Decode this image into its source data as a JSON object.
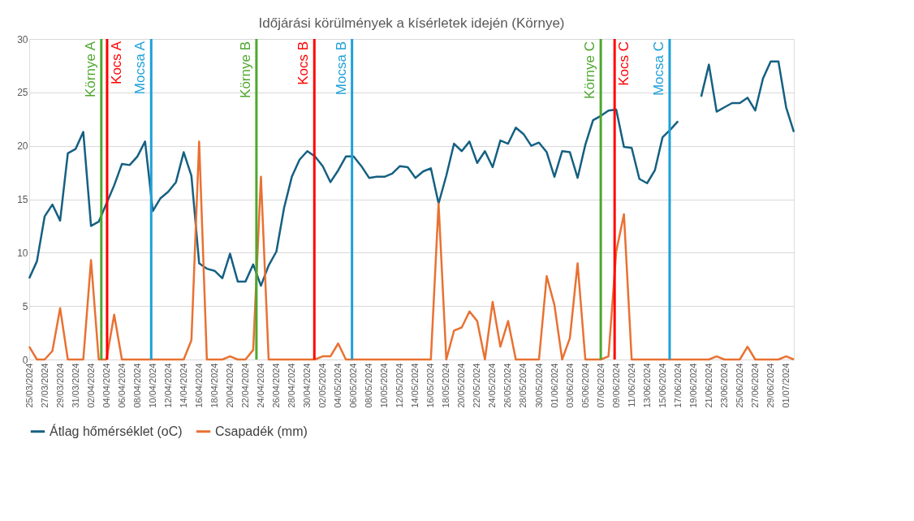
{
  "chart_data": {
    "type": "line",
    "title": "Időjárási körülmények a kísérletek idején (Környe)",
    "x": [
      "2024-03-25",
      "2024-03-26",
      "2024-03-27",
      "2024-03-28",
      "2024-03-29",
      "2024-03-30",
      "2024-03-31",
      "2024-04-01",
      "2024-04-02",
      "2024-04-03",
      "2024-04-04",
      "2024-04-05",
      "2024-04-06",
      "2024-04-07",
      "2024-04-08",
      "2024-04-09",
      "2024-04-10",
      "2024-04-11",
      "2024-04-12",
      "2024-04-13",
      "2024-04-14",
      "2024-04-15",
      "2024-04-16",
      "2024-04-17",
      "2024-04-18",
      "2024-04-19",
      "2024-04-20",
      "2024-04-21",
      "2024-04-22",
      "2024-04-23",
      "2024-04-24",
      "2024-04-25",
      "2024-04-26",
      "2024-04-27",
      "2024-04-28",
      "2024-04-29",
      "2024-04-30",
      "2024-05-01",
      "2024-05-02",
      "2024-05-03",
      "2024-05-04",
      "2024-05-05",
      "2024-05-06",
      "2024-05-07",
      "2024-05-08",
      "2024-05-09",
      "2024-05-10",
      "2024-05-11",
      "2024-05-12",
      "2024-05-13",
      "2024-05-14",
      "2024-05-15",
      "2024-05-16",
      "2024-05-17",
      "2024-05-18",
      "2024-05-19",
      "2024-05-20",
      "2024-05-21",
      "2024-05-22",
      "2024-05-23",
      "2024-05-24",
      "2024-05-25",
      "2024-05-26",
      "2024-05-27",
      "2024-05-28",
      "2024-05-29",
      "2024-05-30",
      "2024-05-31",
      "2024-06-01",
      "2024-06-02",
      "2024-06-03",
      "2024-06-04",
      "2024-06-05",
      "2024-06-06",
      "2024-06-07",
      "2024-06-08",
      "2024-06-09",
      "2024-06-10",
      "2024-06-11",
      "2024-06-12",
      "2024-06-13",
      "2024-06-14",
      "2024-06-15",
      "2024-06-16",
      "2024-06-17",
      "2024-06-18",
      "2024-06-19",
      "2024-06-20",
      "2024-06-21",
      "2024-06-22",
      "2024-06-23",
      "2024-06-24",
      "2024-06-25",
      "2024-06-26",
      "2024-06-27",
      "2024-06-28",
      "2024-06-29",
      "2024-06-30",
      "2024-07-01",
      "2024-07-02"
    ],
    "series": [
      {
        "name": "Átlag hőmérséklet (oC)",
        "color": "#156082",
        "values": [
          7.6,
          9.2,
          13.4,
          14.5,
          13.0,
          19.3,
          19.7,
          21.3,
          12.5,
          12.9,
          14.6,
          16.3,
          18.3,
          18.2,
          19.0,
          20.4,
          13.9,
          15.1,
          15.7,
          16.6,
          19.4,
          17.2,
          9.0,
          8.5,
          8.3,
          7.6,
          9.9,
          7.3,
          7.3,
          8.9,
          6.9,
          8.8,
          10.1,
          14.2,
          17.1,
          18.7,
          19.5,
          19.0,
          18.1,
          16.6,
          17.7,
          19.0,
          19.0,
          18.1,
          17.0,
          17.1,
          17.1,
          17.4,
          18.1,
          18.0,
          17.0,
          17.6,
          17.9,
          14.6,
          17.2,
          20.2,
          19.5,
          20.4,
          18.4,
          19.5,
          18.0,
          20.5,
          20.2,
          21.7,
          21.1,
          20.0,
          20.3,
          19.4,
          17.1,
          19.5,
          19.4,
          17.0,
          20.1,
          22.4,
          22.8,
          23.3,
          23.4,
          19.9,
          19.8,
          16.9,
          16.5,
          17.7,
          20.8,
          21.5,
          22.3,
          null,
          null,
          24.6,
          27.6,
          23.2,
          23.6,
          24.0,
          24.0,
          24.5,
          23.3,
          26.3,
          27.9,
          27.9,
          23.6,
          21.3
        ]
      },
      {
        "name": "Csapadék (mm)",
        "color": "#e97132",
        "values": [
          1.2,
          0,
          0,
          0.8,
          4.8,
          0,
          0,
          0,
          9.3,
          0,
          0,
          4.2,
          0,
          0,
          0,
          0,
          0,
          0,
          0,
          0,
          0,
          1.8,
          20.4,
          0,
          0,
          0,
          0.3,
          0,
          0,
          0.9,
          17.1,
          0,
          0,
          0,
          0,
          0,
          0,
          0,
          0.3,
          0.3,
          1.5,
          0,
          0,
          0,
          0,
          0,
          0,
          0,
          0,
          0,
          0,
          0,
          0,
          14.6,
          0,
          2.7,
          3.0,
          4.5,
          3.6,
          0,
          5.4,
          1.2,
          3.6,
          0,
          0,
          0,
          0,
          7.8,
          5.1,
          0,
          2.0,
          9.0,
          0,
          0,
          0,
          0.3,
          10.1,
          13.6,
          0,
          0,
          0,
          0,
          0,
          0,
          0,
          0,
          0,
          0,
          0,
          0.3,
          0,
          0,
          0,
          1.2,
          0,
          0,
          0,
          0,
          0.3,
          0
        ]
      }
    ],
    "xlim": [
      "2024-03-25",
      "2024-07-02"
    ],
    "xticks": [
      {
        "value": "2024-03-25",
        "label": "25/03/2024"
      },
      {
        "value": "2024-03-27",
        "label": "27/03/2024"
      },
      {
        "value": "2024-03-29",
        "label": "29/03/2024"
      },
      {
        "value": "2024-03-31",
        "label": "31/03/2024"
      },
      {
        "value": "2024-04-02",
        "label": "02/04/2024"
      },
      {
        "value": "2024-04-04",
        "label": "04/04/2024"
      },
      {
        "value": "2024-04-06",
        "label": "06/04/2024"
      },
      {
        "value": "2024-04-08",
        "label": "08/04/2024"
      },
      {
        "value": "2024-04-10",
        "label": "10/04/2024"
      },
      {
        "value": "2024-04-12",
        "label": "12/04/2024"
      },
      {
        "value": "2024-04-14",
        "label": "14/04/2024"
      },
      {
        "value": "2024-04-16",
        "label": "16/04/2024"
      },
      {
        "value": "2024-04-18",
        "label": "18/04/2024"
      },
      {
        "value": "2024-04-20",
        "label": "20/04/2024"
      },
      {
        "value": "2024-04-22",
        "label": "22/04/2024"
      },
      {
        "value": "2024-04-24",
        "label": "24/04/2024"
      },
      {
        "value": "2024-04-26",
        "label": "26/04/2024"
      },
      {
        "value": "2024-04-28",
        "label": "28/04/2024"
      },
      {
        "value": "2024-04-30",
        "label": "30/04/2024"
      },
      {
        "value": "2024-05-02",
        "label": "02/05/2024"
      },
      {
        "value": "2024-05-04",
        "label": "04/05/2024"
      },
      {
        "value": "2024-05-06",
        "label": "06/05/2024"
      },
      {
        "value": "2024-05-08",
        "label": "08/05/2024"
      },
      {
        "value": "2024-05-10",
        "label": "10/05/2024"
      },
      {
        "value": "2024-05-12",
        "label": "12/05/2024"
      },
      {
        "value": "2024-05-14",
        "label": "14/05/2024"
      },
      {
        "value": "2024-05-16",
        "label": "16/05/2024"
      },
      {
        "value": "2024-05-18",
        "label": "18/05/2024"
      },
      {
        "value": "2024-05-20",
        "label": "20/05/2024"
      },
      {
        "value": "2024-05-22",
        "label": "22/05/2024"
      },
      {
        "value": "2024-05-24",
        "label": "24/05/2024"
      },
      {
        "value": "2024-05-26",
        "label": "26/05/2024"
      },
      {
        "value": "2024-05-28",
        "label": "28/05/2024"
      },
      {
        "value": "2024-05-30",
        "label": "30/05/2024"
      },
      {
        "value": "2024-06-01",
        "label": "01/06/2024"
      },
      {
        "value": "2024-06-03",
        "label": "03/06/2024"
      },
      {
        "value": "2024-06-05",
        "label": "05/06/2024"
      },
      {
        "value": "2024-06-07",
        "label": "07/06/2024"
      },
      {
        "value": "2024-06-09",
        "label": "09/06/2024"
      },
      {
        "value": "2024-06-11",
        "label": "11/06/2024"
      },
      {
        "value": "2024-06-13",
        "label": "13/06/2024"
      },
      {
        "value": "2024-06-15",
        "label": "15/06/2024"
      },
      {
        "value": "2024-06-17",
        "label": "17/06/2024"
      },
      {
        "value": "2024-06-19",
        "label": "19/06/2024"
      },
      {
        "value": "2024-06-21",
        "label": "21/06/2024"
      },
      {
        "value": "2024-06-23",
        "label": "23/06/2024"
      },
      {
        "value": "2024-06-25",
        "label": "25/06/2024"
      },
      {
        "value": "2024-06-27",
        "label": "27/06/2024"
      },
      {
        "value": "2024-06-29",
        "label": "29/06/2024"
      },
      {
        "value": "2024-07-01",
        "label": "01/07/2024"
      }
    ],
    "ylim": [
      0,
      30
    ],
    "yticks": [
      0,
      5,
      10,
      15,
      20,
      25,
      30
    ],
    "ref_lines": [
      {
        "axis": "x",
        "value": "2024-04-03T08:00",
        "label": "Környe A",
        "color": "#4ea72e"
      },
      {
        "axis": "x",
        "value": "2024-04-04T02:00",
        "label": "Kocs A",
        "color": "#ff0000"
      },
      {
        "axis": "x",
        "value": "2024-04-09T19:00",
        "label": "Mocsa A",
        "color": "#1ea0d8"
      },
      {
        "axis": "x",
        "value": "2024-04-23T10:00",
        "label": "Környe B",
        "color": "#4ea72e"
      },
      {
        "axis": "x",
        "value": "2024-04-30T22:00",
        "label": "Kocs B",
        "color": "#ff0000"
      },
      {
        "axis": "x",
        "value": "2024-05-05T19:00",
        "label": "Mocsa B",
        "color": "#1ea0d8"
      },
      {
        "axis": "x",
        "value": "2024-06-07T00:00",
        "label": "Környe C",
        "color": "#4ea72e"
      },
      {
        "axis": "x",
        "value": "2024-06-08T19:00",
        "label": "Kocs C",
        "color": "#ff0000"
      },
      {
        "axis": "x",
        "value": "2024-06-15T22:00",
        "label": "Mocsa C",
        "color": "#1ea0d8"
      }
    ],
    "grid": "y",
    "legend": "bottom",
    "marker": "none",
    "line_style": "solid"
  }
}
